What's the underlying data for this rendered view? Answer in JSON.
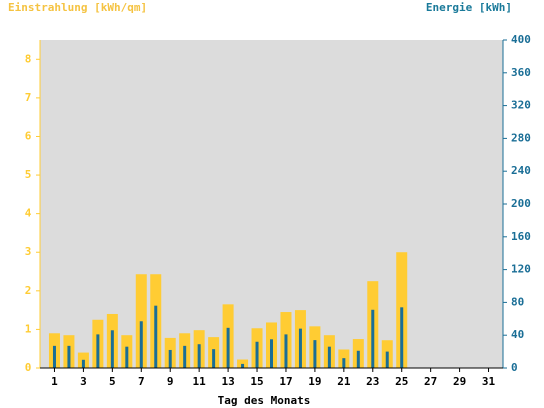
{
  "chart_data": {
    "type": "bar",
    "y_label": "Einstrahlung [kWh/qm]",
    "y2_label": "Energie [kWh]",
    "x_label": "Tag des Monats",
    "x": [
      1,
      2,
      3,
      4,
      5,
      6,
      7,
      8,
      9,
      10,
      11,
      12,
      13,
      14,
      15,
      16,
      17,
      18,
      19,
      20,
      21,
      22,
      23,
      24,
      25
    ],
    "xlim": [
      0,
      32
    ],
    "xticks": [
      1,
      3,
      5,
      7,
      9,
      11,
      13,
      15,
      17,
      19,
      21,
      23,
      25,
      27,
      29,
      31
    ],
    "ylim": [
      0,
      8.5
    ],
    "yticks": [
      0,
      1,
      2,
      3,
      4,
      5,
      6,
      7,
      8
    ],
    "y2lim": [
      0,
      400
    ],
    "y2ticks": [
      0,
      40,
      80,
      120,
      160,
      200,
      240,
      280,
      320,
      360,
      400
    ],
    "series": [
      {
        "name": "Einstrahlung",
        "color": "#ffcc33",
        "values": [
          0.9,
          0.85,
          0.4,
          1.25,
          1.4,
          0.85,
          2.43,
          2.43,
          0.78,
          0.9,
          0.98,
          0.8,
          1.65,
          0.22,
          1.03,
          1.18,
          1.45,
          1.5,
          1.08,
          0.85,
          0.48,
          0.75,
          2.25,
          0.72,
          3.0
        ]
      },
      {
        "name": "Energie",
        "color": "#1a6e96",
        "axis": "y2",
        "values": [
          27,
          27,
          10,
          41,
          46,
          26,
          57,
          76,
          22,
          27,
          29,
          23,
          49,
          5,
          32,
          35,
          41,
          48,
          34,
          26,
          12,
          21,
          71,
          20,
          74
        ]
      }
    ]
  }
}
